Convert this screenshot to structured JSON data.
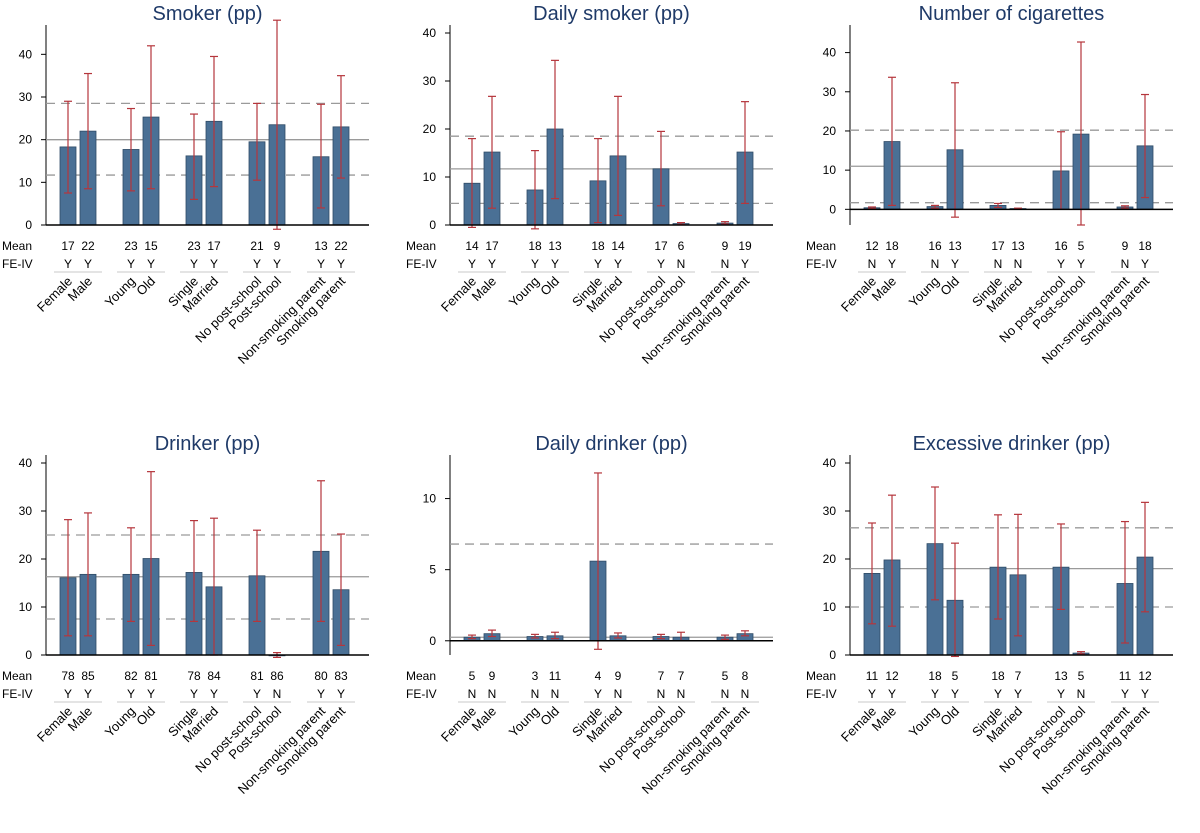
{
  "row_labels": {
    "mean": "Mean",
    "feiv": "FE-IV"
  },
  "categories": [
    "Female",
    "Male",
    "Young",
    "Old",
    "Single",
    "Married",
    "No post-school",
    "Post-school",
    "Non-smoking parent",
    "Smoking parent"
  ],
  "colors": {
    "bar": "#4a7095",
    "bar_edge": "#2f4b66",
    "error": "#b5363c",
    "title": "#1f3a68",
    "ref_line": "#9a9a9a",
    "axis": "#000000"
  },
  "chart_data": [
    {
      "type": "bar",
      "title": "Smoker (pp)",
      "ylim": [
        0,
        45
      ],
      "yticks": [
        0,
        10,
        20,
        30,
        40
      ],
      "values": [
        18.3,
        22,
        17.7,
        25.3,
        16.2,
        24.3,
        19.5,
        23.5,
        16,
        23
      ],
      "err_low": [
        7.5,
        8.5,
        8,
        8.5,
        6,
        9,
        10.5,
        -1,
        4,
        11
      ],
      "err_high": [
        29,
        35.5,
        27.3,
        42,
        26,
        39.5,
        28.5,
        48,
        28.3,
        35
      ],
      "ref_solid": 20,
      "ref_dashed": [
        11.7,
        28.5
      ],
      "means": [
        "17",
        "22",
        "23",
        "15",
        "23",
        "17",
        "21",
        "9",
        "13",
        "22"
      ],
      "feiv": [
        "Y",
        "Y",
        "Y",
        "Y",
        "Y",
        "Y",
        "Y",
        "Y",
        "Y",
        "Y"
      ]
    },
    {
      "type": "bar",
      "title": "Daily smoker (pp)",
      "ylim": [
        0,
        40
      ],
      "yticks": [
        0,
        10,
        20,
        30,
        40
      ],
      "values": [
        8.7,
        15.2,
        7.3,
        20,
        9.2,
        14.4,
        11.7,
        0.3,
        0.4,
        15.2
      ],
      "err_low": [
        -0.5,
        3.5,
        -0.8,
        5.5,
        0.5,
        2,
        4,
        0.1,
        0.2,
        4.5
      ],
      "err_high": [
        18,
        26.8,
        15.5,
        34.3,
        18,
        26.8,
        19.5,
        0.5,
        0.7,
        25.7
      ],
      "ref_solid": 11.7,
      "ref_dashed": [
        4.5,
        18.5
      ],
      "means": [
        "14",
        "17",
        "18",
        "13",
        "18",
        "14",
        "17",
        "6",
        "9",
        "19"
      ],
      "feiv": [
        "Y",
        "Y",
        "Y",
        "Y",
        "Y",
        "Y",
        "Y",
        "N",
        "N",
        "Y"
      ]
    },
    {
      "type": "bar",
      "title": "Number of cigarettes",
      "ylim": [
        -4,
        45
      ],
      "yticks": [
        0,
        10,
        20,
        30,
        40
      ],
      "values": [
        0.4,
        17.3,
        0.7,
        15.2,
        1,
        0.2,
        9.8,
        19.2,
        0.6,
        16.2
      ],
      "err_low": [
        0.2,
        1,
        0.3,
        -2,
        0.5,
        0.1,
        0,
        -4,
        0.3,
        3
      ],
      "err_high": [
        0.6,
        33.7,
        1,
        32.3,
        1.5,
        0.3,
        19.8,
        42.7,
        0.9,
        29.3
      ],
      "ref_solid": 11,
      "ref_dashed": [
        1.7,
        20.2
      ],
      "means": [
        "12",
        "18",
        "16",
        "13",
        "17",
        "13",
        "16",
        "5",
        "9",
        "18"
      ],
      "feiv": [
        "N",
        "Y",
        "N",
        "Y",
        "N",
        "N",
        "Y",
        "Y",
        "N",
        "Y"
      ]
    },
    {
      "type": "bar",
      "title": "Drinker (pp)",
      "ylim": [
        0,
        40
      ],
      "yticks": [
        0,
        10,
        20,
        30,
        40
      ],
      "values": [
        16.1,
        16.8,
        16.8,
        20.1,
        17.2,
        14.2,
        16.5,
        0,
        21.6,
        13.6
      ],
      "err_low": [
        4,
        4,
        7,
        2,
        7,
        0,
        7,
        -0.5,
        7,
        2
      ],
      "err_high": [
        28.2,
        29.6,
        26.5,
        38.2,
        28,
        28.5,
        26,
        0.5,
        36.3,
        25.2
      ],
      "ref_solid": 16.3,
      "ref_dashed": [
        7.5,
        25
      ],
      "means": [
        "78",
        "85",
        "82",
        "81",
        "78",
        "84",
        "81",
        "86",
        "80",
        "83"
      ],
      "feiv": [
        "Y",
        "Y",
        "Y",
        "Y",
        "Y",
        "Y",
        "Y",
        "N",
        "Y",
        "Y"
      ]
    },
    {
      "type": "bar",
      "title": "Daily drinker (pp)",
      "ylim": [
        -1,
        12.5
      ],
      "yticks": [
        0,
        5,
        10
      ],
      "values": [
        0.25,
        0.5,
        0.3,
        0.35,
        5.6,
        0.35,
        0.3,
        0.25,
        0.25,
        0.5
      ],
      "err_low": [
        0.15,
        0.3,
        0.2,
        0.15,
        -0.6,
        0.2,
        0.15,
        0,
        0.1,
        0.35
      ],
      "err_high": [
        0.4,
        0.75,
        0.45,
        0.6,
        11.8,
        0.55,
        0.45,
        0.6,
        0.4,
        0.7
      ],
      "ref_solid": 0.25,
      "ref_dashed": [
        6.8
      ],
      "means": [
        "5",
        "9",
        "3",
        "11",
        "4",
        "9",
        "7",
        "7",
        "5",
        "8"
      ],
      "feiv": [
        "N",
        "N",
        "N",
        "N",
        "Y",
        "N",
        "N",
        "N",
        "N",
        "N"
      ]
    },
    {
      "type": "bar",
      "title": "Excessive drinker (pp)",
      "ylim": [
        0,
        40
      ],
      "yticks": [
        0,
        10,
        20,
        30,
        40
      ],
      "values": [
        17,
        19.8,
        23.2,
        11.4,
        18.3,
        16.7,
        18.3,
        0.4,
        14.9,
        20.4
      ],
      "err_low": [
        6.5,
        6,
        11.5,
        -0.3,
        7.5,
        4,
        9.5,
        0.2,
        2.5,
        9
      ],
      "err_high": [
        27.5,
        33.3,
        35,
        23.3,
        29.2,
        29.3,
        27.3,
        0.7,
        27.8,
        31.8
      ],
      "ref_solid": 18,
      "ref_dashed": [
        10,
        26.5
      ],
      "means": [
        "11",
        "12",
        "18",
        "5",
        "18",
        "7",
        "13",
        "5",
        "11",
        "12"
      ],
      "feiv": [
        "Y",
        "Y",
        "Y",
        "Y",
        "Y",
        "Y",
        "Y",
        "N",
        "Y",
        "Y"
      ]
    }
  ]
}
